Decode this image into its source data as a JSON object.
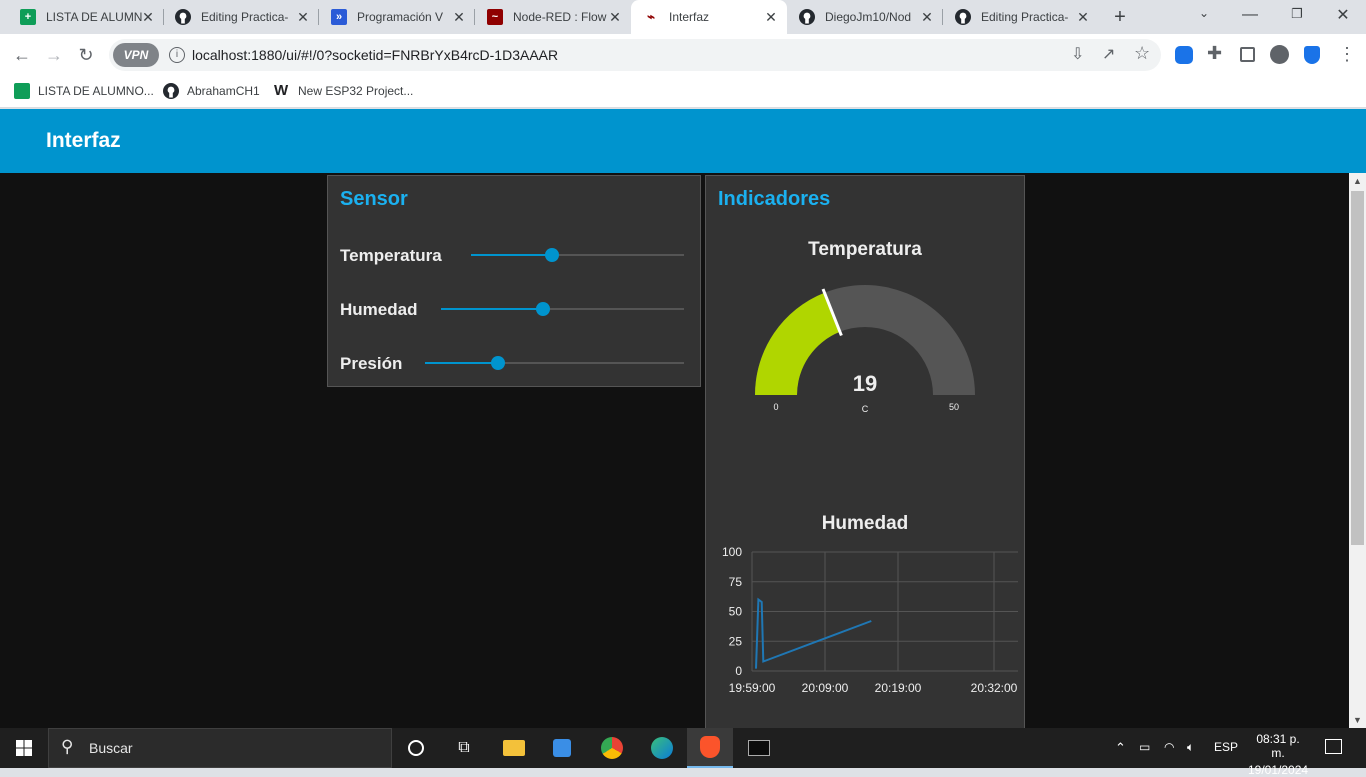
{
  "browser": {
    "tabs": [
      {
        "title": "LISTA DE ALUMN",
        "icon": "sheets-icon"
      },
      {
        "title": "Editing Practica-",
        "icon": "github-icon"
      },
      {
        "title": "Programación V",
        "icon": "docs-icon"
      },
      {
        "title": "Node-RED : Flow",
        "icon": "node-red-icon"
      },
      {
        "title": "Interfaz",
        "icon": "node-red-dashboard-icon"
      },
      {
        "title": "DiegoJm10/Nod",
        "icon": "github-icon"
      },
      {
        "title": "Editing Practica-",
        "icon": "github-icon"
      }
    ],
    "active_tab": 4,
    "url": "localhost:1880/ui/#!/0?socketid=FNRBrYxB4rcD-1D3AAAR",
    "vpn_label": "VPN",
    "bookmarks": [
      {
        "label": "LISTA DE ALUMNO...",
        "icon": "sheets-icon"
      },
      {
        "label": "AbrahamCH1",
        "icon": "github-icon"
      },
      {
        "label": "New ESP32 Project...",
        "icon": "wokwi-icon"
      }
    ]
  },
  "dashboard": {
    "title": "Interfaz",
    "sensor_group": {
      "title": "Sensor",
      "sliders": [
        {
          "label": "Temperatura",
          "fraction": 0.38
        },
        {
          "label": "Humedad",
          "fraction": 0.42
        },
        {
          "label": "Presión",
          "fraction": 0.28
        }
      ]
    },
    "indicators_group": {
      "title": "Indicadores",
      "gauge": {
        "title": "Temperatura",
        "value": "19",
        "units": "C",
        "min": "0",
        "max": "50",
        "numeric_value": 19,
        "numeric_min": 0,
        "numeric_max": 50
      }
    },
    "humidity_chart_title": "Humedad"
  },
  "chart_data": {
    "type": "line",
    "title": "Humedad",
    "xlabel": "",
    "ylabel": "",
    "ylim": [
      0,
      100
    ],
    "y_ticks": [
      "100",
      "75",
      "50",
      "25",
      "0"
    ],
    "x_ticks": [
      "19:59:00",
      "20:09:00",
      "20:19:00",
      "20:32:00"
    ],
    "x_range_minutes": [
      0,
      33
    ],
    "series": [
      {
        "name": "Humedad",
        "points": [
          [
            0.5,
            2
          ],
          [
            0.8,
            60
          ],
          [
            1.2,
            58
          ],
          [
            1.4,
            8
          ],
          [
            14.8,
            42
          ]
        ]
      }
    ],
    "color": "#1f77b4"
  },
  "taskbar": {
    "search_placeholder": "Buscar",
    "language": "ESP",
    "time": "08:31 p. m.",
    "date": "19/01/2024"
  },
  "colors": {
    "accent": "#0094ce",
    "group_title": "#1bb1f0",
    "gauge_fill": "#b0d600",
    "gauge_bg": "#555555"
  }
}
